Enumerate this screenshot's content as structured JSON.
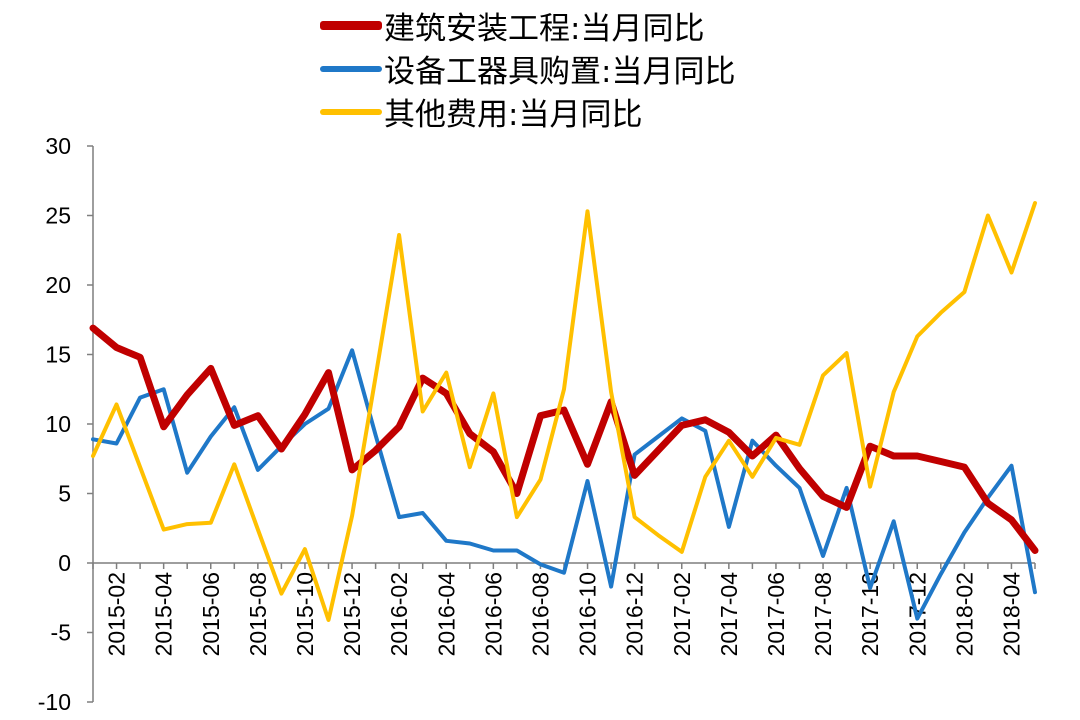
{
  "chart_data": {
    "type": "line",
    "title": "",
    "xlabel": "",
    "ylabel": "",
    "ylim": [
      -10,
      30
    ],
    "yticks": [
      -10,
      -5,
      0,
      5,
      10,
      15,
      20,
      25,
      30
    ],
    "grid": false,
    "legend_position": "top",
    "x": [
      "2015-01",
      "2015-02",
      "2015-03",
      "2015-04",
      "2015-05",
      "2015-06",
      "2015-07",
      "2015-08",
      "2015-09",
      "2015-10",
      "2015-11",
      "2015-12",
      "2016-01",
      "2016-02",
      "2016-03",
      "2016-04",
      "2016-05",
      "2016-06",
      "2016-07",
      "2016-08",
      "2016-09",
      "2016-10",
      "2016-11",
      "2016-12",
      "2017-01",
      "2017-02",
      "2017-03",
      "2017-04",
      "2017-05",
      "2017-06",
      "2017-07",
      "2017-08",
      "2017-09",
      "2017-10",
      "2017-11",
      "2017-12",
      "2018-01",
      "2018-02",
      "2018-03",
      "2018-04",
      "2018-05"
    ],
    "x_tick_labels": [
      "2015-02",
      "2015-04",
      "2015-06",
      "2015-08",
      "2015-10",
      "2015-12",
      "2016-02",
      "2016-04",
      "2016-06",
      "2016-08",
      "2016-10",
      "2016-12",
      "2017-02",
      "2017-04",
      "2017-06",
      "2017-08",
      "2017-10",
      "2017-12",
      "2018-02",
      "2018-04"
    ],
    "series": [
      {
        "name": "建筑安装工程:当月同比",
        "color": "#c00000",
        "width": 7,
        "values": [
          16.9,
          15.5,
          14.8,
          9.8,
          12.1,
          14.0,
          9.9,
          10.6,
          8.2,
          10.7,
          13.7,
          6.7,
          8.1,
          9.8,
          13.3,
          12.2,
          9.3,
          8.0,
          5.0,
          10.6,
          11.0,
          7.1,
          11.6,
          6.3,
          8.1,
          9.9,
          10.3,
          9.4,
          7.7,
          9.2,
          6.8,
          4.8,
          4.0,
          8.4,
          7.7,
          7.7,
          7.3,
          6.9,
          4.3,
          3.1,
          0.9
        ]
      },
      {
        "name": "设备工器具购置:当月同比",
        "color": "#1f78c8",
        "width": 4,
        "values": [
          8.9,
          8.6,
          11.9,
          12.5,
          6.5,
          9.1,
          11.2,
          6.7,
          8.4,
          10.0,
          11.1,
          15.3,
          9.2,
          3.3,
          3.6,
          1.6,
          1.4,
          0.9,
          0.9,
          -0.1,
          -0.7,
          5.9,
          -1.7,
          7.8,
          9.1,
          10.4,
          9.5,
          2.6,
          8.8,
          7.0,
          5.4,
          0.5,
          5.4,
          -1.8,
          3.0,
          -4.0,
          -0.8,
          2.2,
          4.7,
          7.0,
          -2.1
        ]
      },
      {
        "name": "其他费用:当月同比",
        "color": "#ffc000",
        "width": 4,
        "values": [
          7.7,
          11.4,
          6.9,
          2.4,
          2.8,
          2.9,
          7.1,
          2.4,
          -2.2,
          1.0,
          -4.1,
          3.4,
          13.4,
          23.6,
          10.9,
          13.7,
          6.9,
          12.2,
          3.3,
          6.0,
          12.5,
          25.3,
          12.3,
          3.3,
          2.0,
          0.8,
          6.2,
          8.8,
          6.2,
          9.0,
          8.5,
          13.5,
          15.1,
          5.5,
          12.3,
          16.3,
          18.0,
          19.5,
          25.0,
          20.9,
          25.9
        ]
      }
    ]
  }
}
